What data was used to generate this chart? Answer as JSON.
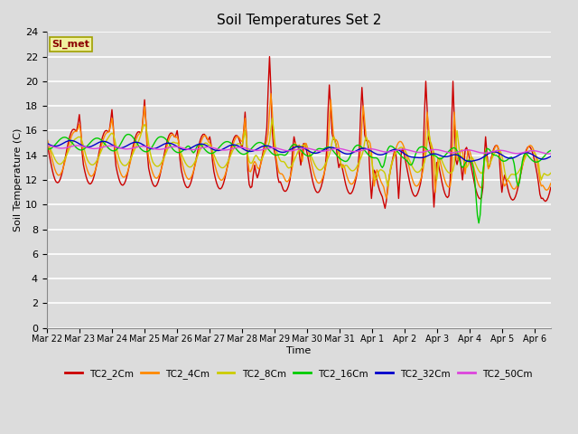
{
  "title": "Soil Temperatures Set 2",
  "xlabel": "Time",
  "ylabel": "Soil Temperature (C)",
  "ylim": [
    0,
    24
  ],
  "yticks": [
    0,
    2,
    4,
    6,
    8,
    10,
    12,
    14,
    16,
    18,
    20,
    22,
    24
  ],
  "bg_color": "#dcdcdc",
  "annotation_text": "SI_met",
  "annotation_color": "#8b0000",
  "annotation_bg": "#f0f0a0",
  "annotation_border": "#a0a000",
  "series": [
    {
      "label": "TC2_2Cm",
      "color": "#cc0000"
    },
    {
      "label": "TC2_4Cm",
      "color": "#ff8800"
    },
    {
      "label": "TC2_8Cm",
      "color": "#cccc00"
    },
    {
      "label": "TC2_16Cm",
      "color": "#00cc00"
    },
    {
      "label": "TC2_32Cm",
      "color": "#0000cc"
    },
    {
      "label": "TC2_50Cm",
      "color": "#dd44dd"
    }
  ],
  "xtick_labels": [
    "Mar 22",
    "Mar 23",
    "Mar 24",
    "Mar 25",
    "Mar 26",
    "Mar 27",
    "Mar 28",
    "Mar 29",
    "Mar 30",
    "Mar 31",
    "Apr 1",
    "Apr 2",
    "Apr 3",
    "Apr 4",
    "Apr 5",
    "Apr 6"
  ],
  "num_days": 15.5
}
